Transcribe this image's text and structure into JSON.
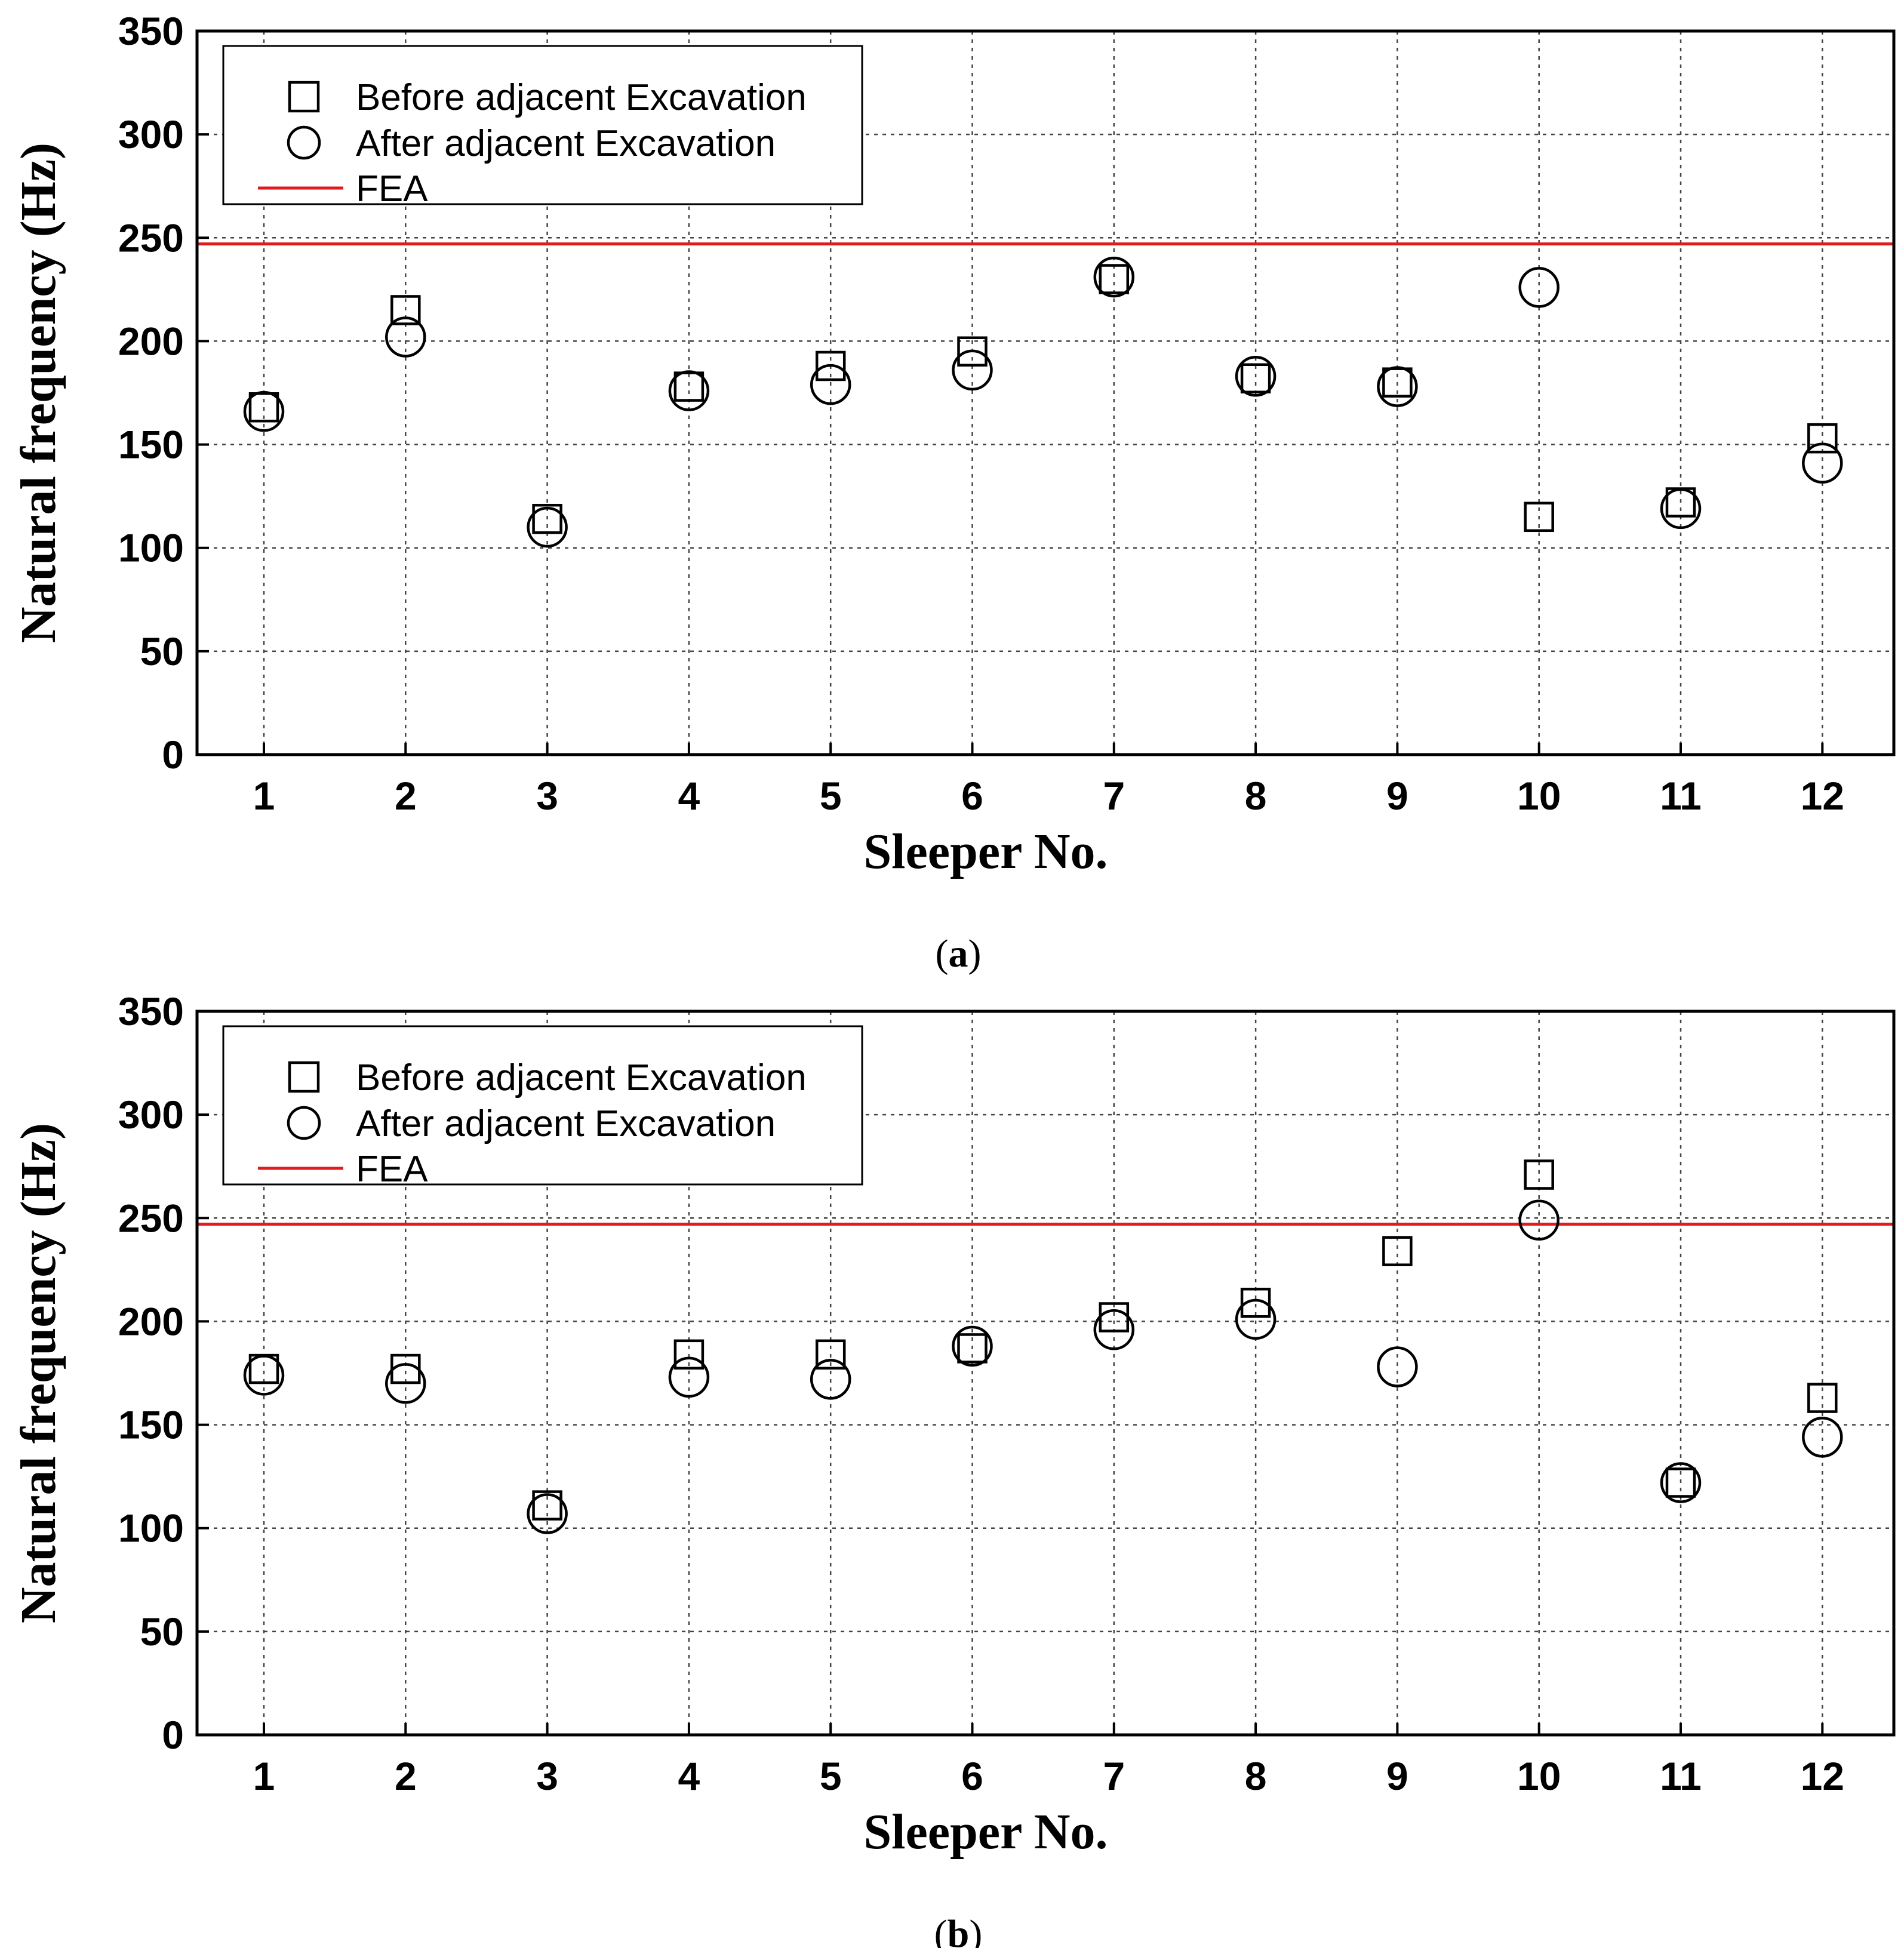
{
  "chart_data": [
    {
      "type": "scatter",
      "panel_label": "(a)",
      "xlabel": "Sleeper No.",
      "ylabel": "Natural frequency (Hz)",
      "categories": [
        "1",
        "2",
        "3",
        "4",
        "5",
        "6",
        "7",
        "8",
        "9",
        "10",
        "11",
        "12"
      ],
      "ylim": [
        0,
        350
      ],
      "yticks": [
        "0",
        "50",
        "100",
        "150",
        "200",
        "250",
        "300",
        "350"
      ],
      "grid": true,
      "legend_position": "top-left",
      "series": [
        {
          "name": "Before adjacent Excavation",
          "marker": "square",
          "values": [
            168,
            215,
            114,
            178,
            188,
            195,
            230,
            182,
            180,
            115,
            122,
            153
          ]
        },
        {
          "name": "After adjacent Excavation",
          "marker": "circle",
          "values": [
            166,
            202,
            110,
            176,
            179,
            186,
            231,
            183,
            178,
            226,
            119,
            141
          ]
        }
      ],
      "reference_line": {
        "name": "FEA",
        "value": 247,
        "color": "#e31a1c"
      }
    },
    {
      "type": "scatter",
      "panel_label": "(b)",
      "xlabel": "Sleeper No.",
      "ylabel": "Natural frequency (Hz)",
      "categories": [
        "1",
        "2",
        "3",
        "4",
        "5",
        "6",
        "7",
        "8",
        "9",
        "10",
        "11",
        "12"
      ],
      "ylim": [
        0,
        350
      ],
      "yticks": [
        "0",
        "50",
        "100",
        "150",
        "200",
        "250",
        "300",
        "350"
      ],
      "grid": true,
      "legend_position": "top-left",
      "series": [
        {
          "name": "Before adjacent Excavation",
          "marker": "square",
          "values": [
            177,
            177,
            111,
            184,
            184,
            187,
            202,
            209,
            234,
            271,
            122,
            163
          ]
        },
        {
          "name": "After adjacent Excavation",
          "marker": "circle",
          "values": [
            174,
            170,
            107,
            173,
            172,
            188,
            196,
            201,
            178,
            249,
            122,
            144
          ]
        }
      ],
      "reference_line": {
        "name": "FEA",
        "value": 247,
        "color": "#e31a1c"
      }
    }
  ]
}
